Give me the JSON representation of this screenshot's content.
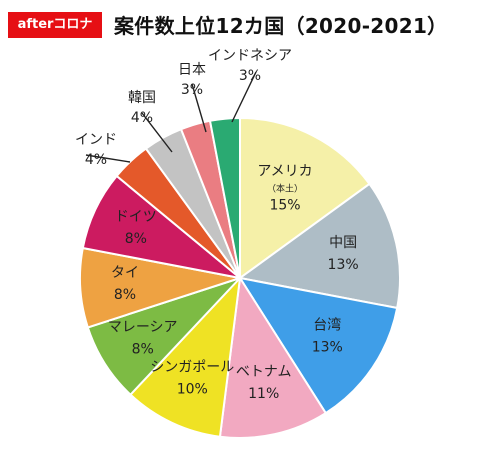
{
  "header": {
    "badge": "afterコロナ",
    "title": "案件数上位12カ国（2020-2021）"
  },
  "chart_data": {
    "type": "pie",
    "title": "案件数上位12カ国（2020-2021）",
    "unit": "%",
    "slices": [
      {
        "label": "アメリカ",
        "sublabel": "（本土）",
        "value": 15,
        "color": "#f5f0a8"
      },
      {
        "label": "中国",
        "value": 13,
        "color": "#aebdc6"
      },
      {
        "label": "台湾",
        "value": 13,
        "color": "#3f9ee8"
      },
      {
        "label": "ベトナム",
        "value": 11,
        "color": "#f2a9c1"
      },
      {
        "label": "シンガポール",
        "value": 10,
        "color": "#efe224"
      },
      {
        "label": "マレーシア",
        "value": 8,
        "color": "#7dbb44"
      },
      {
        "label": "タイ",
        "value": 8,
        "color": "#eea242"
      },
      {
        "label": "ドイツ",
        "value": 8,
        "color": "#cc1b60"
      },
      {
        "label": "インド",
        "value": 4,
        "color": "#e4592a"
      },
      {
        "label": "韓国",
        "value": 4,
        "color": "#c3c3c3"
      },
      {
        "label": "日本",
        "value": 3,
        "color": "#ea7d82"
      },
      {
        "label": "インドネシア",
        "value": 3,
        "color": "#2aaa72"
      }
    ]
  }
}
